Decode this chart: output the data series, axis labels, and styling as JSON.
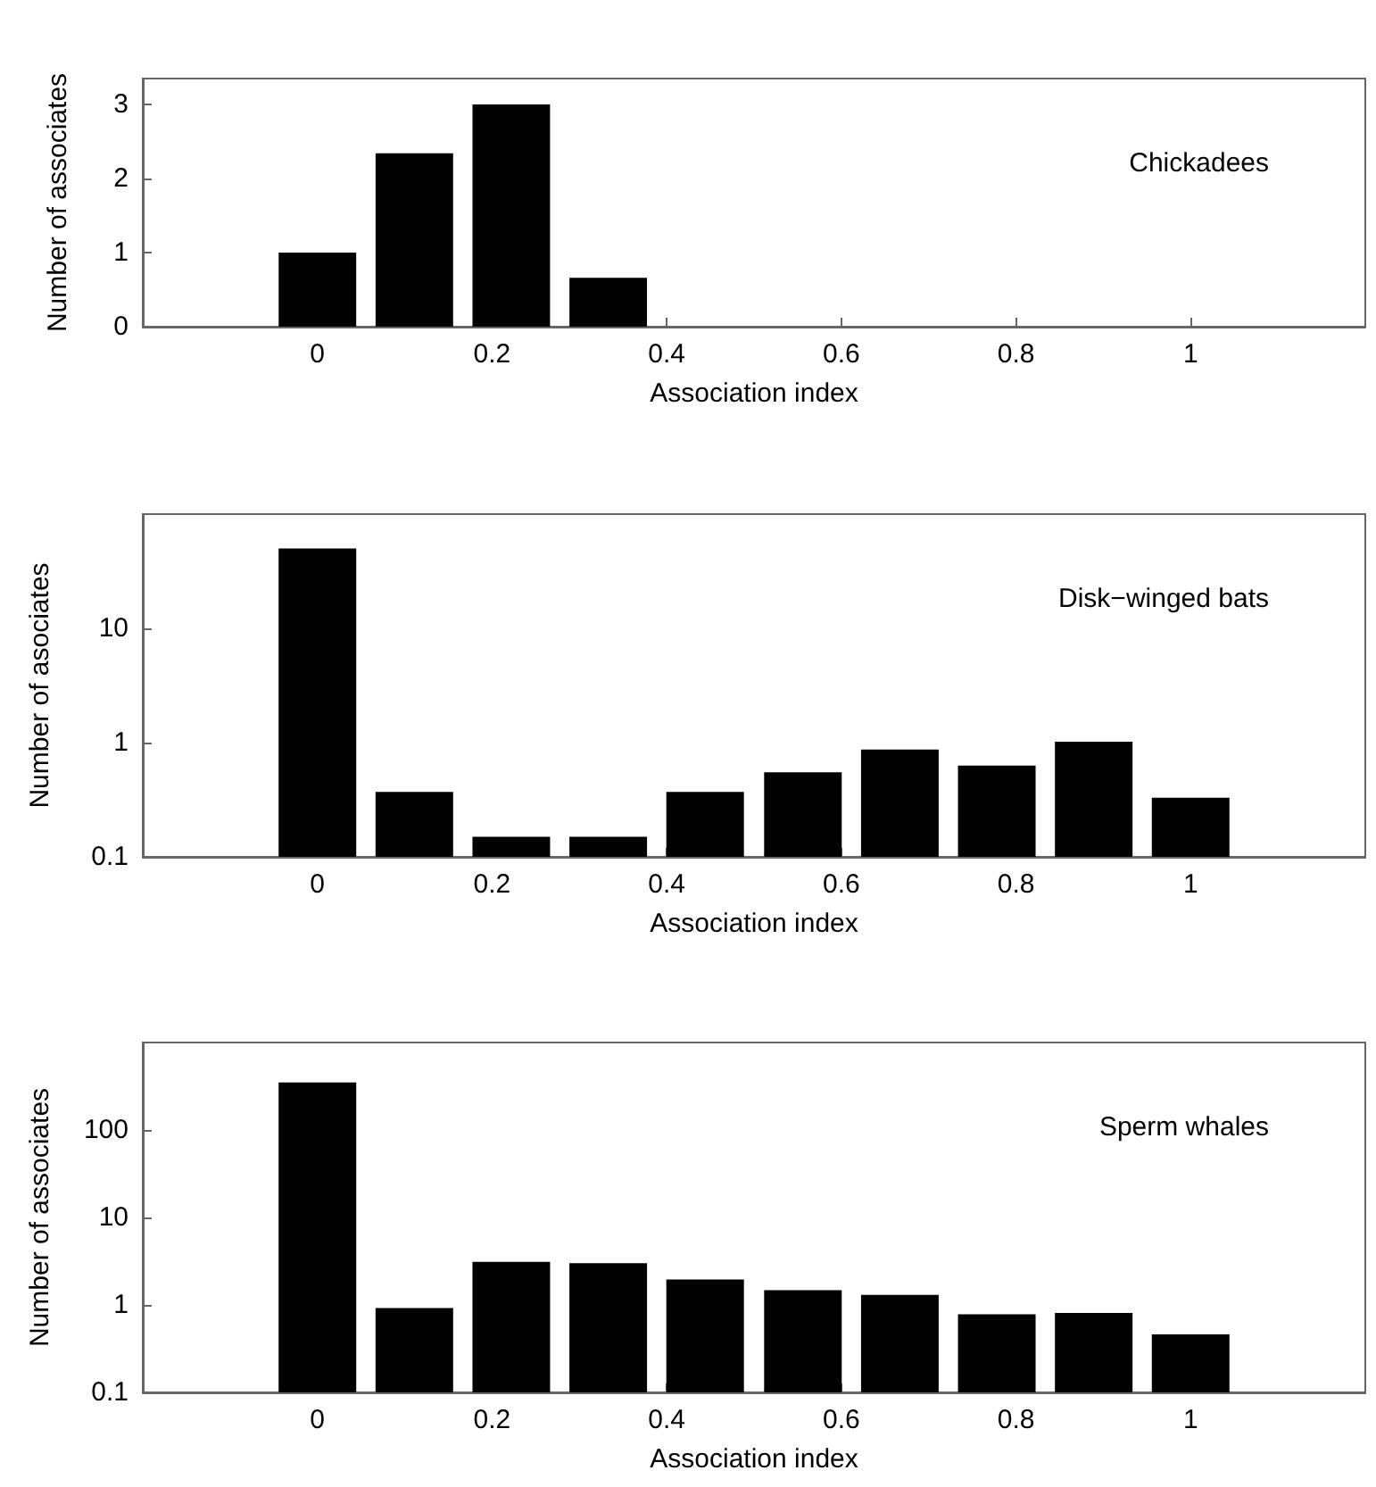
{
  "chart_data": [
    {
      "type": "bar",
      "xlabel": "Association index",
      "ylabel": "Number of associates",
      "annotations": [
        "Chickadees"
      ],
      "xlim": [
        -0.2,
        1.2
      ],
      "xticks": [
        0,
        0.2,
        0.4,
        0.6,
        0.8,
        1
      ],
      "ylim": [
        0,
        3.35
      ],
      "yticks": [
        0,
        1,
        2,
        3
      ],
      "series": [
        {
          "color": "#000000",
          "x": [
            0,
            0.111,
            0.222,
            0.333
          ],
          "values": [
            1,
            2.34,
            3,
            0.66
          ]
        }
      ]
    },
    {
      "type": "bar",
      "xlabel": "Association index",
      "ylabel": "Number of asociates",
      "annotations": [
        "Disk−winged bats"
      ],
      "log": true,
      "xlim": [
        -0.2,
        1.2
      ],
      "xticks": [
        0,
        0.2,
        0.4,
        0.6,
        0.8,
        1
      ],
      "ylim": [
        0.1,
        100
      ],
      "yticks": [
        0.1,
        1,
        10
      ],
      "series": [
        {
          "color": "#000000",
          "x": [
            0,
            0.111,
            0.222,
            0.333,
            0.444,
            0.556,
            0.667,
            0.778,
            0.889,
            1
          ],
          "values": [
            50,
            0.37,
            0.15,
            0.15,
            0.37,
            0.55,
            0.87,
            0.63,
            1.02,
            0.33
          ]
        }
      ]
    },
    {
      "type": "bar",
      "xlabel": "Association index",
      "ylabel": "Number of associates",
      "annotations": [
        "Sperm whales"
      ],
      "log": true,
      "xlim": [
        -0.2,
        1.2
      ],
      "xticks": [
        0,
        0.2,
        0.4,
        0.6,
        0.8,
        1
      ],
      "ylim": [
        0.1,
        1000
      ],
      "yticks": [
        0.1,
        1,
        10,
        100
      ],
      "series": [
        {
          "color": "#000000",
          "x": [
            0,
            0.111,
            0.222,
            0.333,
            0.444,
            0.556,
            0.667,
            0.778,
            0.889,
            1
          ],
          "values": [
            350,
            0.92,
            3.1,
            3,
            1.95,
            1.47,
            1.3,
            0.78,
            0.81,
            0.46
          ]
        }
      ]
    }
  ]
}
